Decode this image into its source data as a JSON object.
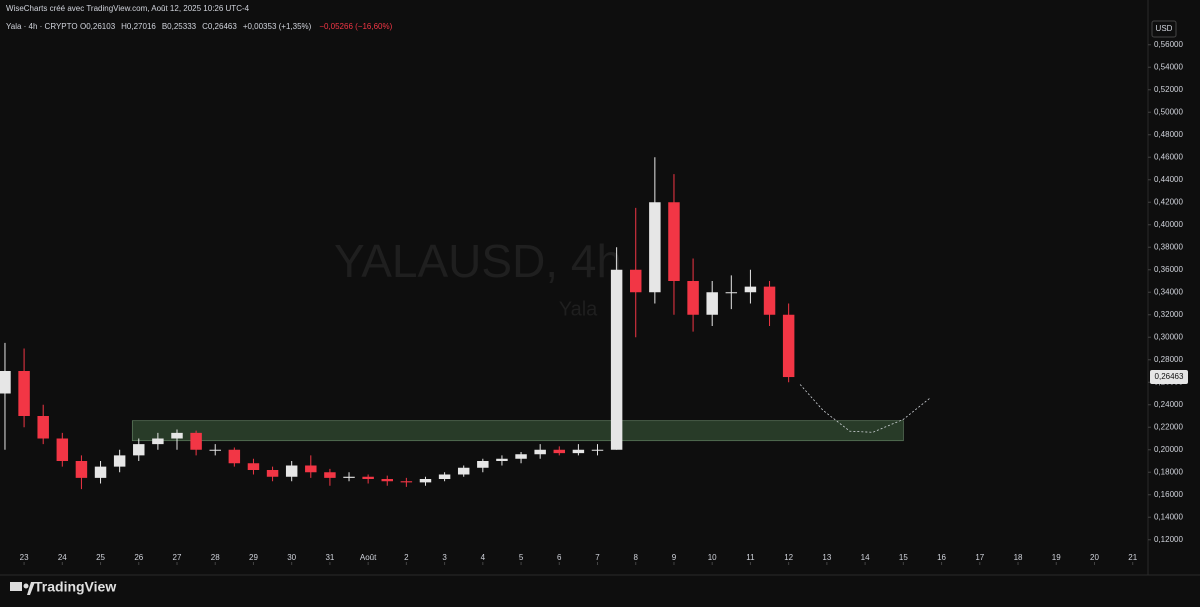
{
  "chart_data": {
    "type": "candlestick",
    "credit": "WiseCharts créé avec TradingView.com, Août 12, 2025 10:26 UTC-4",
    "symbol_line": "Yala · 4h · CRYPTO",
    "ohlc_texts": [
      "O0,26103",
      "H0,27016",
      "B0,25333",
      "C0,26463",
      "+0,00353 (+1,35%)"
    ],
    "change_text": "−0,05266 (−16,60%)",
    "watermark": "YALAUSD, 4h",
    "watermark_sub": "Yala",
    "currency": "USD",
    "brand": "TradingView",
    "up_color": "#e6e6e6",
    "down_color": "#f23645",
    "x": [
      -0.5,
      0,
      0.5,
      1,
      1.5,
      2,
      2.5,
      3,
      3.5,
      4,
      4.5,
      5,
      5.5,
      6,
      6.5,
      7,
      7.5,
      8,
      8.5,
      9,
      9.5,
      10,
      10.5,
      11,
      11.5,
      12,
      12.5,
      13,
      13.5,
      14,
      14.5,
      15,
      15.5,
      16,
      16.5,
      17,
      17.5,
      18,
      18.5,
      19,
      19.5,
      20
    ],
    "open": [
      0.25,
      0.27,
      0.23,
      0.21,
      0.19,
      0.175,
      0.185,
      0.195,
      0.205,
      0.21,
      0.215,
      0.2,
      0.2,
      0.188,
      0.182,
      0.176,
      0.186,
      0.18,
      0.175,
      0.176,
      0.174,
      0.172,
      0.171,
      0.174,
      0.178,
      0.184,
      0.19,
      0.192,
      0.196,
      0.2,
      0.197,
      0.2,
      0.2,
      0.36,
      0.34,
      0.42,
      0.35,
      0.32,
      0.34,
      0.34,
      0.345,
      0.32
    ],
    "high": [
      0.295,
      0.29,
      0.24,
      0.215,
      0.195,
      0.19,
      0.2,
      0.21,
      0.215,
      0.218,
      0.217,
      0.205,
      0.202,
      0.192,
      0.185,
      0.19,
      0.195,
      0.183,
      0.18,
      0.178,
      0.177,
      0.175,
      0.176,
      0.18,
      0.186,
      0.192,
      0.195,
      0.198,
      0.205,
      0.203,
      0.205,
      0.205,
      0.38,
      0.415,
      0.46,
      0.445,
      0.37,
      0.35,
      0.355,
      0.36,
      0.35,
      0.33
    ],
    "low": [
      0.2,
      0.22,
      0.205,
      0.185,
      0.165,
      0.17,
      0.18,
      0.19,
      0.2,
      0.2,
      0.195,
      0.195,
      0.185,
      0.178,
      0.172,
      0.172,
      0.175,
      0.168,
      0.172,
      0.17,
      0.168,
      0.167,
      0.168,
      0.172,
      0.176,
      0.18,
      0.186,
      0.188,
      0.192,
      0.195,
      0.195,
      0.195,
      0.2,
      0.3,
      0.33,
      0.32,
      0.305,
      0.31,
      0.325,
      0.33,
      0.31,
      0.26
    ],
    "close": [
      0.27,
      0.23,
      0.21,
      0.19,
      0.175,
      0.185,
      0.195,
      0.205,
      0.21,
      0.215,
      0.2,
      0.2,
      0.188,
      0.182,
      0.176,
      0.186,
      0.18,
      0.175,
      0.176,
      0.174,
      0.172,
      0.171,
      0.174,
      0.178,
      0.184,
      0.19,
      0.192,
      0.196,
      0.2,
      0.197,
      0.2,
      0.2,
      0.36,
      0.34,
      0.42,
      0.35,
      0.32,
      0.34,
      0.34,
      0.345,
      0.32,
      0.26463
    ],
    "zone": {
      "x": [
        2.83,
        23.0
      ],
      "y": [
        0.208,
        0.2258
      ],
      "color": "#3a5a3a"
    },
    "projection": {
      "x": [
        20.3,
        20.9,
        21.6,
        22.2,
        23.0,
        23.7
      ],
      "y": [
        0.258,
        0.235,
        0.2165,
        0.2155,
        0.227,
        0.246
      ]
    },
    "price_tag": {
      "value": 0.26463,
      "label": "0,26463"
    },
    "xlim": [
      -0.63,
      29.4
    ],
    "ylim": [
      0.102,
      0.582
    ],
    "xticks": [
      {
        "value": 0,
        "label": "23"
      },
      {
        "value": 1,
        "label": "24"
      },
      {
        "value": 2,
        "label": "25"
      },
      {
        "value": 3,
        "label": "26"
      },
      {
        "value": 4,
        "label": "27"
      },
      {
        "value": 5,
        "label": "28"
      },
      {
        "value": 6,
        "label": "29"
      },
      {
        "value": 7,
        "label": "30"
      },
      {
        "value": 8,
        "label": "31"
      },
      {
        "value": 9,
        "label": "Août"
      },
      {
        "value": 10,
        "label": "2"
      },
      {
        "value": 11,
        "label": "3"
      },
      {
        "value": 12,
        "label": "4"
      },
      {
        "value": 13,
        "label": "5"
      },
      {
        "value": 14,
        "label": "6"
      },
      {
        "value": 15,
        "label": "7"
      },
      {
        "value": 16,
        "label": "8"
      },
      {
        "value": 17,
        "label": "9"
      },
      {
        "value": 18,
        "label": "10"
      },
      {
        "value": 19,
        "label": "11"
      },
      {
        "value": 20,
        "label": "12"
      },
      {
        "value": 21,
        "label": "13"
      },
      {
        "value": 22,
        "label": "14"
      },
      {
        "value": 23,
        "label": "15"
      },
      {
        "value": 24,
        "label": "16"
      },
      {
        "value": 25,
        "label": "17"
      },
      {
        "value": 26,
        "label": "18"
      },
      {
        "value": 27,
        "label": "19"
      },
      {
        "value": 28,
        "label": "20"
      },
      {
        "value": 29,
        "label": "21"
      }
    ],
    "yticks": [
      {
        "value": 0.12,
        "label": "0,12000"
      },
      {
        "value": 0.14,
        "label": "0,14000"
      },
      {
        "value": 0.16,
        "label": "0,16000"
      },
      {
        "value": 0.18,
        "label": "0,18000"
      },
      {
        "value": 0.2,
        "label": "0,20000"
      },
      {
        "value": 0.22,
        "label": "0,22000"
      },
      {
        "value": 0.24,
        "label": "0,24000"
      },
      {
        "value": 0.26,
        "label": "0,26000"
      },
      {
        "value": 0.28,
        "label": "0,28000"
      },
      {
        "value": 0.3,
        "label": "0,30000"
      },
      {
        "value": 0.32,
        "label": "0,32000"
      },
      {
        "value": 0.34,
        "label": "0,34000"
      },
      {
        "value": 0.36,
        "label": "0,36000"
      },
      {
        "value": 0.38,
        "label": "0,38000"
      },
      {
        "value": 0.4,
        "label": "0,40000"
      },
      {
        "value": 0.42,
        "label": "0,42000"
      },
      {
        "value": 0.44,
        "label": "0,44000"
      },
      {
        "value": 0.46,
        "label": "0,46000"
      },
      {
        "value": 0.48,
        "label": "0,48000"
      },
      {
        "value": 0.5,
        "label": "0,50000"
      },
      {
        "value": 0.52,
        "label": "0,52000"
      },
      {
        "value": 0.54,
        "label": "0,54000"
      },
      {
        "value": 0.56,
        "label": "0,56000"
      }
    ]
  }
}
